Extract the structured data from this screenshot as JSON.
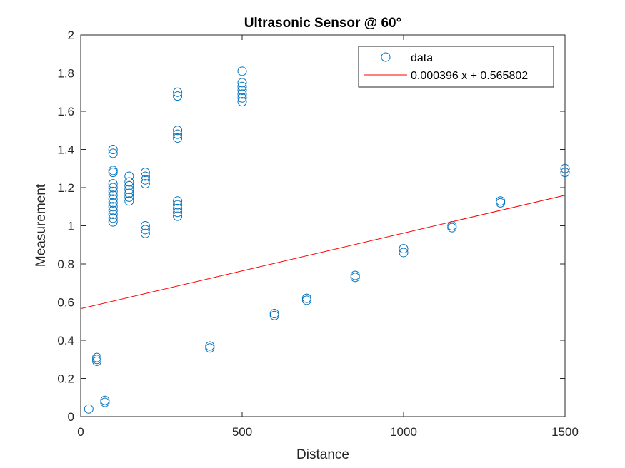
{
  "chart_data": {
    "type": "scatter",
    "title": "Ultrasonic Sensor @ 60°",
    "xlabel": "Distance",
    "ylabel": "Measurement",
    "xlim": [
      0,
      1500
    ],
    "ylim": [
      0,
      2
    ],
    "xticks": [
      0,
      500,
      1000,
      1500
    ],
    "xtick_labels": [
      "0",
      "500",
      "1000",
      "1500"
    ],
    "yticks": [
      0,
      0.2,
      0.4,
      0.6,
      0.8,
      1,
      1.2,
      1.4,
      1.6,
      1.8,
      2
    ],
    "ytick_labels": [
      "0",
      "0.2",
      "0.4",
      "0.6",
      "0.8",
      "1",
      "1.2",
      "1.4",
      "1.6",
      "1.8",
      "2"
    ],
    "grid": false,
    "legend": "top-right",
    "colors": {
      "data": "#0072BD",
      "fit": "#FF0000",
      "axis": "#262626"
    },
    "series": [
      {
        "name": "data",
        "kind": "markers",
        "points": [
          [
            25,
            0.04
          ],
          [
            50,
            0.29
          ],
          [
            50,
            0.3
          ],
          [
            50,
            0.31
          ],
          [
            75,
            0.075
          ],
          [
            75,
            0.085
          ],
          [
            100,
            1.02
          ],
          [
            100,
            1.04
          ],
          [
            100,
            1.06
          ],
          [
            100,
            1.08
          ],
          [
            100,
            1.1
          ],
          [
            100,
            1.12
          ],
          [
            100,
            1.14
          ],
          [
            100,
            1.16
          ],
          [
            100,
            1.18
          ],
          [
            100,
            1.2
          ],
          [
            100,
            1.22
          ],
          [
            100,
            1.28
          ],
          [
            100,
            1.29
          ],
          [
            100,
            1.38
          ],
          [
            100,
            1.4
          ],
          [
            150,
            1.13
          ],
          [
            150,
            1.15
          ],
          [
            150,
            1.17
          ],
          [
            150,
            1.19
          ],
          [
            150,
            1.21
          ],
          [
            150,
            1.23
          ],
          [
            150,
            1.26
          ],
          [
            200,
            0.96
          ],
          [
            200,
            0.98
          ],
          [
            200,
            1.0
          ],
          [
            200,
            1.22
          ],
          [
            200,
            1.24
          ],
          [
            200,
            1.26
          ],
          [
            200,
            1.28
          ],
          [
            300,
            1.05
          ],
          [
            300,
            1.07
          ],
          [
            300,
            1.09
          ],
          [
            300,
            1.11
          ],
          [
            300,
            1.13
          ],
          [
            300,
            1.46
          ],
          [
            300,
            1.48
          ],
          [
            300,
            1.5
          ],
          [
            300,
            1.68
          ],
          [
            300,
            1.7
          ],
          [
            400,
            0.36
          ],
          [
            400,
            0.37
          ],
          [
            500,
            1.65
          ],
          [
            500,
            1.67
          ],
          [
            500,
            1.69
          ],
          [
            500,
            1.71
          ],
          [
            500,
            1.73
          ],
          [
            500,
            1.75
          ],
          [
            500,
            1.81
          ],
          [
            600,
            0.53
          ],
          [
            600,
            0.54
          ],
          [
            700,
            0.61
          ],
          [
            700,
            0.62
          ],
          [
            850,
            0.73
          ],
          [
            850,
            0.74
          ],
          [
            1000,
            0.86
          ],
          [
            1000,
            0.88
          ],
          [
            1150,
            0.99
          ],
          [
            1150,
            1.0
          ],
          [
            1300,
            1.12
          ],
          [
            1300,
            1.13
          ],
          [
            1500,
            1.28
          ],
          [
            1500,
            1.3
          ]
        ]
      },
      {
        "name": "0.000396 x + 0.565802",
        "kind": "line",
        "slope": 0.000396,
        "intercept": 0.565802
      }
    ]
  }
}
